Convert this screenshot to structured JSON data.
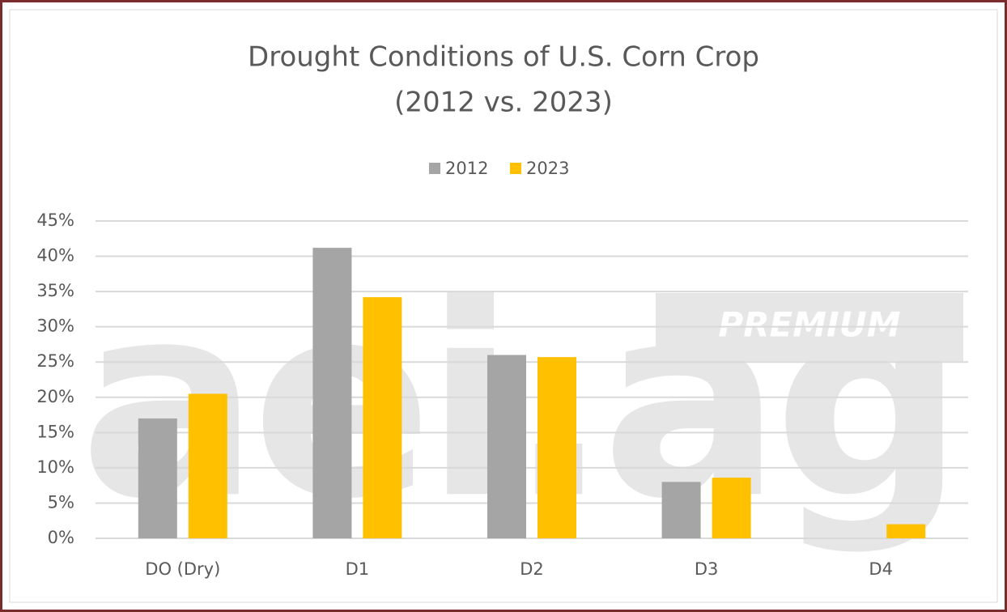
{
  "chart_data": {
    "type": "bar",
    "title": "Drought Conditions of U.S. Corn Crop",
    "subtitle": "(2012 vs. 2023)",
    "watermark": "aei.ag",
    "watermark_badge": "PREMIUM",
    "categories": [
      "DO (Dry)",
      "D1",
      "D2",
      "D3",
      "D4"
    ],
    "series": [
      {
        "name": "2012",
        "color": "#a5a5a5",
        "values": [
          17,
          41.2,
          26,
          8,
          0
        ]
      },
      {
        "name": "2023",
        "color": "#ffc000",
        "values": [
          20.5,
          34.2,
          25.7,
          8.6,
          2
        ]
      }
    ],
    "ylim": [
      0,
      45
    ],
    "yticks": [
      {
        "value": 0,
        "label": "0%"
      },
      {
        "value": 5,
        "label": "5%"
      },
      {
        "value": 10,
        "label": "10%"
      },
      {
        "value": 15,
        "label": "15%"
      },
      {
        "value": 20,
        "label": "20%"
      },
      {
        "value": 25,
        "label": "25%"
      },
      {
        "value": 30,
        "label": "30%"
      },
      {
        "value": 35,
        "label": "35%"
      },
      {
        "value": 40,
        "label": "40%"
      },
      {
        "value": 45,
        "label": "45%"
      }
    ],
    "grid": true,
    "legend": "top"
  }
}
